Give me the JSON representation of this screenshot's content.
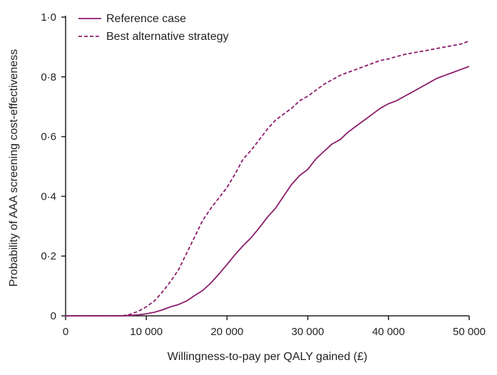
{
  "chart_data": {
    "type": "line",
    "xlabel": "Willingness-to-pay per QALY gained (£)",
    "ylabel": "Probability of AAA screening cost-effectiveness",
    "xlim": [
      0,
      50000
    ],
    "ylim": [
      0,
      1.0
    ],
    "x_ticks": [
      0,
      10000,
      20000,
      30000,
      40000,
      50000
    ],
    "x_tick_labels": [
      "0",
      "10 000",
      "20 000",
      "30 000",
      "40 000",
      "50 000"
    ],
    "y_ticks": [
      0,
      0.2,
      0.4,
      0.6,
      0.8,
      1.0
    ],
    "y_tick_labels": [
      "0",
      "0·2",
      "0·4",
      "0·6",
      "0·8",
      "1·0"
    ],
    "grid": false,
    "legend_position": "top-left",
    "series": [
      {
        "name": "Reference case",
        "style": "solid",
        "color": "#8b1c6b",
        "x": [
          0,
          7000,
          9000,
          10000,
          11000,
          12000,
          13000,
          14000,
          15000,
          16000,
          17000,
          18000,
          19000,
          20000,
          21000,
          22000,
          23000,
          24000,
          25000,
          26000,
          27000,
          28000,
          29000,
          30000,
          31000,
          32000,
          33000,
          34000,
          35000,
          36000,
          37000,
          38000,
          39000,
          40000,
          41000,
          42000,
          43000,
          44000,
          45000,
          46000,
          47000,
          48000,
          49000,
          50000
        ],
        "y": [
          0,
          0,
          0.003,
          0.007,
          0.012,
          0.02,
          0.03,
          0.038,
          0.05,
          0.068,
          0.085,
          0.11,
          0.14,
          0.172,
          0.205,
          0.235,
          0.262,
          0.295,
          0.33,
          0.36,
          0.4,
          0.44,
          0.47,
          0.49,
          0.525,
          0.55,
          0.575,
          0.59,
          0.615,
          0.635,
          0.655,
          0.675,
          0.695,
          0.71,
          0.72,
          0.735,
          0.75,
          0.765,
          0.78,
          0.795,
          0.805,
          0.815,
          0.825,
          0.835
        ]
      },
      {
        "name": "Best alternative strategy",
        "style": "dashed",
        "color": "#8b1c6b",
        "x": [
          0,
          7000,
          8000,
          9000,
          10000,
          11000,
          12000,
          13000,
          14000,
          15000,
          16000,
          17000,
          18000,
          19000,
          20000,
          21000,
          22000,
          23000,
          24000,
          25000,
          26000,
          27000,
          28000,
          29000,
          30000,
          31000,
          32000,
          33000,
          34000,
          35000,
          36000,
          37000,
          38000,
          39000,
          40000,
          41000,
          42000,
          43000,
          44000,
          45000,
          46000,
          47000,
          48000,
          49000,
          50000
        ],
        "y": [
          0,
          0,
          0.005,
          0.015,
          0.03,
          0.05,
          0.08,
          0.115,
          0.155,
          0.21,
          0.265,
          0.32,
          0.36,
          0.395,
          0.43,
          0.475,
          0.525,
          0.555,
          0.59,
          0.625,
          0.655,
          0.675,
          0.695,
          0.72,
          0.735,
          0.755,
          0.775,
          0.79,
          0.805,
          0.815,
          0.825,
          0.835,
          0.845,
          0.855,
          0.86,
          0.868,
          0.875,
          0.88,
          0.885,
          0.89,
          0.895,
          0.9,
          0.905,
          0.91,
          0.92
        ]
      }
    ]
  }
}
